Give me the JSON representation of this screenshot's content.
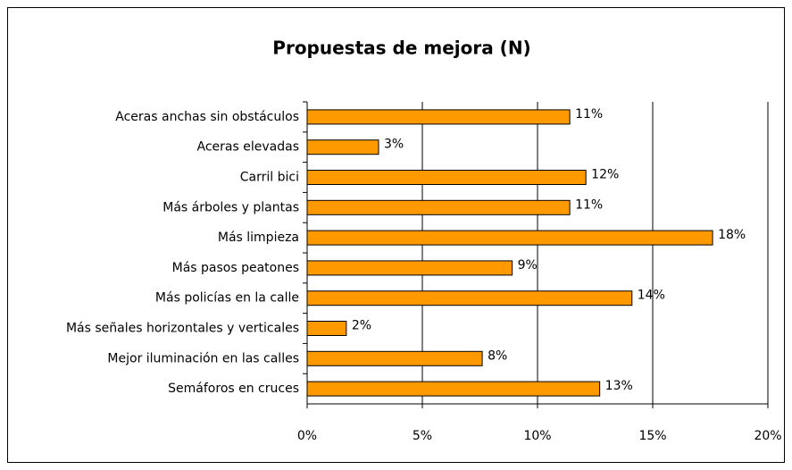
{
  "chart_data": {
    "type": "hbar",
    "title": "Propuestas de mejora (N)",
    "categories": [
      "Aceras anchas sin obstáculos",
      "Aceras elevadas",
      "Carril bici",
      "Más árboles y plantas",
      "Más limpieza",
      "Más pasos peatones",
      "Más policías en la calle",
      "Más señales horizontales y verticales",
      "Mejor iluminación en las calles",
      "Semáforos en cruces"
    ],
    "values": [
      11.4,
      3.1,
      12.1,
      11.4,
      17.6,
      8.9,
      14.1,
      1.7,
      7.6,
      12.7
    ],
    "value_labels": [
      "11%",
      "3%",
      "12%",
      "11%",
      "18%",
      "9%",
      "14%",
      "2%",
      "8%",
      "13%"
    ],
    "color": "#ff9900",
    "xlim": [
      0,
      20
    ],
    "xticks": [
      {
        "value": 0,
        "label": "0%"
      },
      {
        "value": 5,
        "label": "5%"
      },
      {
        "value": 10,
        "label": "10%"
      },
      {
        "value": 15,
        "label": "15%"
      },
      {
        "value": 20,
        "label": "20%"
      }
    ],
    "grid": true
  }
}
